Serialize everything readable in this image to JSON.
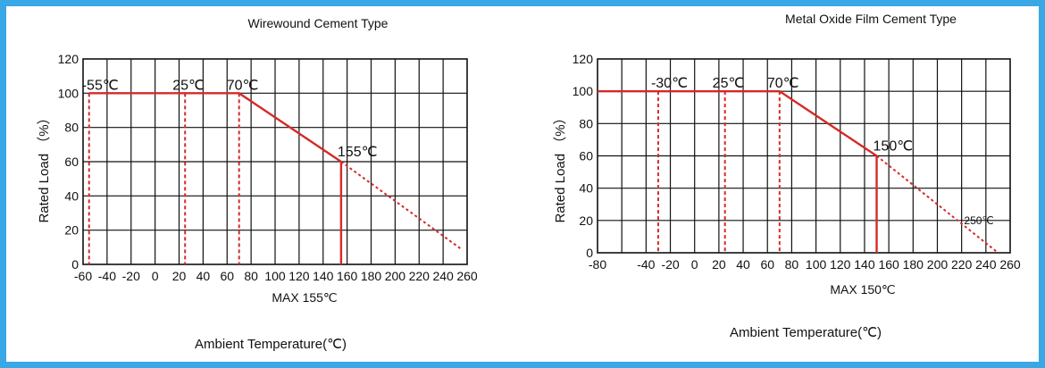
{
  "page": {
    "background": "#ffffff",
    "border_color": "#3aa7e6"
  },
  "chart_data": [
    {
      "type": "line",
      "title": "Wirewound Cement Type",
      "xlabel": "Ambient Temperature(℃)",
      "ylabel": "Rated Load （%）",
      "sublabel": "MAX 155℃",
      "xlim": [
        -60,
        260
      ],
      "ylim": [
        0,
        120
      ],
      "x_ticks": [
        {
          "v": -60,
          "label": "-60"
        },
        {
          "v": -40,
          "label": "-40"
        },
        {
          "v": -20,
          "label": "-20"
        },
        {
          "v": 0,
          "label": "0"
        },
        {
          "v": 20,
          "label": "20"
        },
        {
          "v": 40,
          "label": "40"
        },
        {
          "v": 60,
          "label": "60"
        },
        {
          "v": 80,
          "label": "80"
        },
        {
          "v": 100,
          "label": "100"
        },
        {
          "v": 120,
          "label": "120"
        },
        {
          "v": 140,
          "label": "140"
        },
        {
          "v": 160,
          "label": "160"
        },
        {
          "v": 180,
          "label": "180"
        },
        {
          "v": 200,
          "label": "200"
        },
        {
          "v": 220,
          "label": "220"
        },
        {
          "v": 240,
          "label": "240"
        },
        {
          "v": 260,
          "label": "260"
        }
      ],
      "y_ticks": [
        {
          "v": 0,
          "label": "0"
        },
        {
          "v": 20,
          "label": "20"
        },
        {
          "v": 40,
          "label": "40"
        },
        {
          "v": 60,
          "label": "60"
        },
        {
          "v": 80,
          "label": "80"
        },
        {
          "v": 100,
          "label": "100"
        },
        {
          "v": 120,
          "label": "120"
        }
      ],
      "grid": true,
      "line_color": "#d42a2a",
      "derating_curve": [
        [
          -55,
          100
        ],
        [
          70,
          100
        ],
        [
          155,
          60
        ]
      ],
      "extension": [
        [
          155,
          60
        ],
        [
          255,
          9
        ]
      ],
      "guide_lines": [
        {
          "x": -55,
          "from": 0,
          "to": 100
        },
        {
          "x": 25,
          "from": 0,
          "to": 100
        },
        {
          "x": 70,
          "from": 0,
          "to": 100
        }
      ],
      "max_line": {
        "x": 155,
        "from": 0,
        "to": 60
      },
      "annotations": [
        {
          "text": "-55℃",
          "x": -55,
          "y": 100
        },
        {
          "text": "25℃",
          "x": 25,
          "y": 100
        },
        {
          "text": "70℃",
          "x": 70,
          "y": 100
        },
        {
          "text": "155℃",
          "x": 155,
          "y": 60
        }
      ]
    },
    {
      "type": "line",
      "title": "Metal Oxide Film Cement Type",
      "xlabel": "Ambient Temperature(℃)",
      "ylabel": "Rated Load （%）",
      "sublabel": "MAX 150℃",
      "xlim": [
        -80,
        260
      ],
      "ylim": [
        0,
        120
      ],
      "x_ticks": [
        {
          "v": -80,
          "label": "-80"
        },
        {
          "v": -40,
          "label": "-40"
        },
        {
          "v": -20,
          "label": "-20"
        },
        {
          "v": 0,
          "label": "0"
        },
        {
          "v": 20,
          "label": "20"
        },
        {
          "v": 40,
          "label": "40"
        },
        {
          "v": 60,
          "label": "60"
        },
        {
          "v": 80,
          "label": "80"
        },
        {
          "v": 100,
          "label": "100"
        },
        {
          "v": 120,
          "label": "120"
        },
        {
          "v": 140,
          "label": "140"
        },
        {
          "v": 160,
          "label": "160"
        },
        {
          "v": 180,
          "label": "180"
        },
        {
          "v": 200,
          "label": "200"
        },
        {
          "v": 220,
          "label": "220"
        },
        {
          "v": 240,
          "label": "240"
        },
        {
          "v": 260,
          "label": "260"
        }
      ],
      "y_ticks": [
        {
          "v": 0,
          "label": "0"
        },
        {
          "v": 20,
          "label": "20"
        },
        {
          "v": 40,
          "label": "40"
        },
        {
          "v": 60,
          "label": "60"
        },
        {
          "v": 80,
          "label": "80"
        },
        {
          "v": 100,
          "label": "100"
        },
        {
          "v": 120,
          "label": "120"
        }
      ],
      "grid": true,
      "line_color": "#d42a2a",
      "derating_curve": [
        [
          -80,
          100
        ],
        [
          70,
          100
        ],
        [
          150,
          60
        ]
      ],
      "extension": [
        [
          150,
          60
        ],
        [
          250,
          0
        ]
      ],
      "guide_lines": [
        {
          "x": -30,
          "from": 0,
          "to": 100
        },
        {
          "x": 25,
          "from": 0,
          "to": 100
        },
        {
          "x": 70,
          "from": 0,
          "to": 100
        }
      ],
      "max_line": {
        "x": 150,
        "from": 0,
        "to": 60
      },
      "annotations": [
        {
          "text": "-30℃",
          "x": -30,
          "y": 100
        },
        {
          "text": "25℃",
          "x": 25,
          "y": 100
        },
        {
          "text": "70℃",
          "x": 70,
          "y": 100
        },
        {
          "text": "150℃",
          "x": 150,
          "y": 60
        },
        {
          "text": "250℃",
          "x": 250,
          "y": 0
        }
      ]
    }
  ]
}
